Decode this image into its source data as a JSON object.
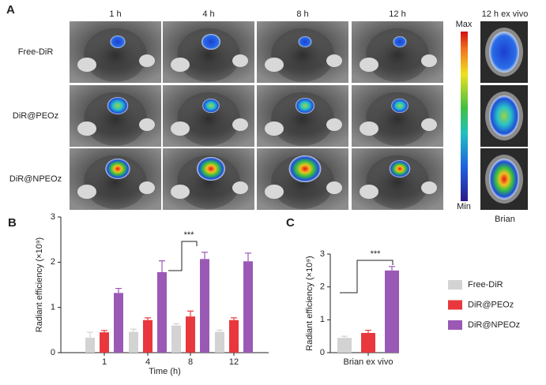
{
  "panel_a": {
    "label": "A",
    "columns": [
      "1 h",
      "4 h",
      "8 h",
      "12 h"
    ],
    "rows": [
      "Free-DiR",
      "DiR@PEOz",
      "DiR@NPEOz"
    ],
    "scale_max": "Max",
    "scale_min": "Min",
    "ex_vivo_title": "12 h ex vivo",
    "ex_vivo_label": "Brian"
  },
  "chart_data": [
    {
      "type": "bar",
      "label": "B",
      "y_label": "Radiant efficiency (×10⁹)",
      "x_label": "Time (h)",
      "annotation": "***",
      "categories": [
        "1",
        "4",
        "8",
        "12"
      ],
      "series": [
        {
          "color": "#d3d3d3",
          "values": [
            0.33,
            0.46,
            0.6,
            0.46
          ],
          "errors": [
            0.12,
            0.06,
            0.04,
            0.04
          ]
        },
        {
          "color": "#e8383d",
          "values": [
            0.45,
            0.72,
            0.8,
            0.72
          ],
          "errors": [
            0.04,
            0.05,
            0.12,
            0.05
          ]
        },
        {
          "color": "#9b59b6",
          "values": [
            1.32,
            1.78,
            2.07,
            2.02
          ],
          "errors": [
            0.1,
            0.25,
            0.15,
            0.18
          ]
        }
      ],
      "ylim": [
        0,
        3
      ],
      "yticks": [
        0,
        1,
        2,
        3
      ]
    },
    {
      "type": "bar",
      "label": "C",
      "y_label": "Radiant efficiency (×10⁹)",
      "annotation": "***",
      "categories": [
        "Brian ex vivo"
      ],
      "series": [
        {
          "name": "Free-DiR",
          "color": "#d3d3d3",
          "values": [
            0.45
          ],
          "errors": [
            0.05
          ]
        },
        {
          "name": "DiR@PEOz",
          "color": "#e8383d",
          "values": [
            0.6
          ],
          "errors": [
            0.08
          ]
        },
        {
          "name": "DiR@NPEOz",
          "color": "#9b59b6",
          "values": [
            2.5
          ],
          "errors": [
            0.12
          ]
        }
      ],
      "ylim": [
        0,
        3
      ],
      "yticks": [
        0,
        1,
        2,
        3
      ]
    }
  ]
}
